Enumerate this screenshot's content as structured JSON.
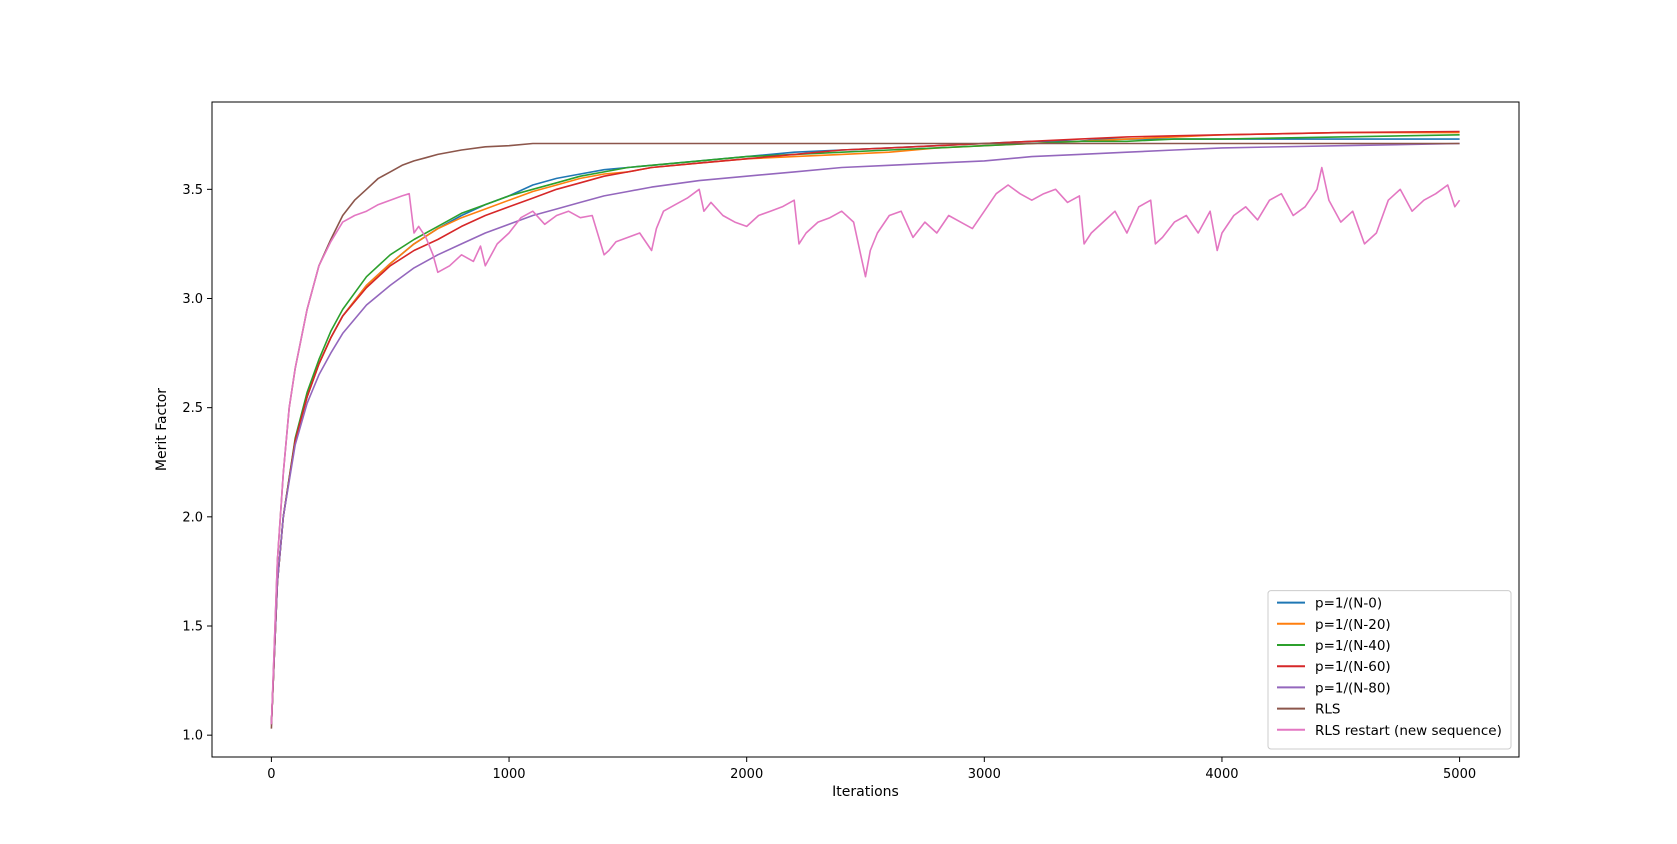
{
  "chart_data": {
    "type": "line",
    "title": "",
    "xlabel": "Iterations",
    "ylabel": "Merit Factor",
    "xlim": [
      -250,
      5250
    ],
    "ylim": [
      0.9,
      3.9
    ],
    "xticks": [
      0,
      1000,
      2000,
      3000,
      4000,
      5000
    ],
    "xtick_labels": [
      "0",
      "1000",
      "2000",
      "3000",
      "4000",
      "5000"
    ],
    "yticks": [
      1.0,
      1.5,
      2.0,
      2.5,
      3.0,
      3.5
    ],
    "ytick_labels": [
      "1.0",
      "1.5",
      "2.0",
      "2.5",
      "3.0",
      "3.5"
    ],
    "grid": false,
    "legend_position": "lower-right",
    "series": [
      {
        "name": "p=1/(N-0)",
        "color": "#1f77b4",
        "x": [
          0,
          25,
          50,
          100,
          150,
          200,
          250,
          300,
          400,
          500,
          600,
          700,
          800,
          900,
          1000,
          1100,
          1200,
          1300,
          1400,
          1500,
          1600,
          1800,
          2000,
          2200,
          2400,
          2600,
          2800,
          3000,
          3200,
          3400,
          3500,
          3700,
          4000,
          4500,
          5000
        ],
        "y": [
          1.05,
          1.7,
          2.0,
          2.35,
          2.55,
          2.7,
          2.82,
          2.92,
          3.06,
          3.16,
          3.25,
          3.32,
          3.38,
          3.43,
          3.47,
          3.52,
          3.55,
          3.57,
          3.59,
          3.6,
          3.61,
          3.63,
          3.65,
          3.67,
          3.68,
          3.69,
          3.7,
          3.71,
          3.72,
          3.72,
          3.73,
          3.73,
          3.73,
          3.73,
          3.73
        ]
      },
      {
        "name": "p=1/(N-20)",
        "color": "#ff7f0e",
        "x": [
          0,
          25,
          50,
          100,
          150,
          200,
          250,
          300,
          400,
          500,
          600,
          700,
          800,
          900,
          1000,
          1100,
          1200,
          1300,
          1400,
          1500,
          1600,
          1800,
          2000,
          2200,
          2400,
          2600,
          2800,
          3000,
          3200,
          3400,
          3600,
          3800,
          4000,
          4500,
          5000
        ],
        "y": [
          1.05,
          1.7,
          2.0,
          2.35,
          2.55,
          2.7,
          2.82,
          2.92,
          3.06,
          3.16,
          3.25,
          3.32,
          3.37,
          3.41,
          3.45,
          3.49,
          3.52,
          3.55,
          3.57,
          3.58,
          3.6,
          3.62,
          3.64,
          3.65,
          3.66,
          3.67,
          3.69,
          3.7,
          3.71,
          3.72,
          3.73,
          3.74,
          3.75,
          3.76,
          3.76
        ]
      },
      {
        "name": "p=1/(N-40)",
        "color": "#2ca02c",
        "x": [
          0,
          25,
          50,
          100,
          150,
          200,
          250,
          300,
          400,
          500,
          600,
          700,
          800,
          900,
          1000,
          1100,
          1200,
          1300,
          1400,
          1500,
          1600,
          1800,
          2000,
          2200,
          2400,
          2600,
          2800,
          3000,
          3200,
          3400,
          3600,
          3800,
          4000,
          4500,
          5000
        ],
        "y": [
          1.05,
          1.7,
          2.0,
          2.36,
          2.57,
          2.72,
          2.85,
          2.95,
          3.1,
          3.2,
          3.27,
          3.33,
          3.39,
          3.43,
          3.47,
          3.5,
          3.53,
          3.56,
          3.58,
          3.6,
          3.61,
          3.63,
          3.65,
          3.66,
          3.67,
          3.68,
          3.69,
          3.7,
          3.71,
          3.72,
          3.72,
          3.73,
          3.73,
          3.74,
          3.75
        ]
      },
      {
        "name": "p=1/(N-60)",
        "color": "#d62728",
        "x": [
          0,
          25,
          50,
          100,
          150,
          200,
          250,
          300,
          400,
          500,
          600,
          700,
          800,
          900,
          1000,
          1100,
          1200,
          1300,
          1400,
          1500,
          1600,
          1800,
          2000,
          2200,
          2400,
          2600,
          2800,
          3000,
          3200,
          3400,
          3600,
          3800,
          4000,
          4500,
          5000
        ],
        "y": [
          1.05,
          1.7,
          2.0,
          2.35,
          2.55,
          2.7,
          2.82,
          2.92,
          3.05,
          3.15,
          3.22,
          3.27,
          3.33,
          3.38,
          3.42,
          3.46,
          3.5,
          3.53,
          3.56,
          3.58,
          3.6,
          3.62,
          3.64,
          3.66,
          3.68,
          3.69,
          3.7,
          3.71,
          3.72,
          3.73,
          3.74,
          3.745,
          3.75,
          3.76,
          3.765
        ]
      },
      {
        "name": "p=1/(N-80)",
        "color": "#9467bd",
        "x": [
          0,
          25,
          50,
          100,
          150,
          200,
          250,
          300,
          400,
          500,
          600,
          700,
          800,
          900,
          1000,
          1100,
          1200,
          1300,
          1400,
          1500,
          1600,
          1800,
          2000,
          2200,
          2400,
          2600,
          2800,
          3000,
          3200,
          3400,
          3600,
          3800,
          4000,
          4500,
          5000
        ],
        "y": [
          1.05,
          1.7,
          2.0,
          2.33,
          2.52,
          2.65,
          2.75,
          2.84,
          2.97,
          3.06,
          3.14,
          3.2,
          3.25,
          3.3,
          3.34,
          3.38,
          3.41,
          3.44,
          3.47,
          3.49,
          3.51,
          3.54,
          3.56,
          3.58,
          3.6,
          3.61,
          3.62,
          3.63,
          3.65,
          3.66,
          3.67,
          3.68,
          3.69,
          3.7,
          3.71
        ]
      },
      {
        "name": "RLS",
        "color": "#8c564b",
        "x": [
          0,
          25,
          50,
          75,
          100,
          150,
          200,
          250,
          300,
          350,
          400,
          450,
          500,
          550,
          600,
          650,
          700,
          800,
          900,
          1000,
          1100,
          1200,
          1500,
          2000,
          2500,
          3000,
          3500,
          4000,
          4500,
          5000
        ],
        "y": [
          1.03,
          1.8,
          2.2,
          2.5,
          2.68,
          2.95,
          3.15,
          3.27,
          3.38,
          3.45,
          3.5,
          3.55,
          3.58,
          3.61,
          3.63,
          3.645,
          3.66,
          3.68,
          3.695,
          3.7,
          3.71,
          3.71,
          3.71,
          3.71,
          3.71,
          3.71,
          3.71,
          3.71,
          3.71,
          3.71
        ]
      },
      {
        "name": "RLS restart (new sequence)",
        "color": "#e377c2",
        "x": [
          0,
          25,
          50,
          75,
          100,
          150,
          200,
          250,
          300,
          350,
          400,
          450,
          500,
          550,
          580,
          600,
          620,
          650,
          680,
          700,
          750,
          800,
          850,
          880,
          900,
          950,
          1000,
          1050,
          1100,
          1150,
          1200,
          1250,
          1300,
          1350,
          1400,
          1420,
          1450,
          1500,
          1550,
          1600,
          1620,
          1650,
          1700,
          1750,
          1800,
          1820,
          1850,
          1900,
          1950,
          2000,
          2050,
          2100,
          2150,
          2200,
          2220,
          2250,
          2300,
          2350,
          2400,
          2450,
          2480,
          2500,
          2520,
          2550,
          2600,
          2650,
          2700,
          2750,
          2800,
          2850,
          2900,
          2950,
          3000,
          3050,
          3100,
          3150,
          3200,
          3250,
          3300,
          3350,
          3400,
          3420,
          3450,
          3500,
          3550,
          3600,
          3650,
          3700,
          3720,
          3750,
          3800,
          3850,
          3900,
          3950,
          3980,
          4000,
          4050,
          4100,
          4150,
          4200,
          4250,
          4300,
          4350,
          4400,
          4420,
          4450,
          4500,
          4550,
          4600,
          4650,
          4700,
          4750,
          4800,
          4850,
          4900,
          4950,
          4980,
          5000
        ],
        "y": [
          1.05,
          1.8,
          2.2,
          2.5,
          2.68,
          2.95,
          3.15,
          3.26,
          3.35,
          3.38,
          3.4,
          3.43,
          3.45,
          3.47,
          3.48,
          3.3,
          3.33,
          3.28,
          3.2,
          3.12,
          3.15,
          3.2,
          3.17,
          3.24,
          3.15,
          3.25,
          3.3,
          3.37,
          3.4,
          3.34,
          3.38,
          3.4,
          3.37,
          3.38,
          3.2,
          3.22,
          3.26,
          3.28,
          3.3,
          3.22,
          3.32,
          3.4,
          3.43,
          3.46,
          3.5,
          3.4,
          3.44,
          3.38,
          3.35,
          3.33,
          3.38,
          3.4,
          3.42,
          3.45,
          3.25,
          3.3,
          3.35,
          3.37,
          3.4,
          3.35,
          3.2,
          3.1,
          3.22,
          3.3,
          3.38,
          3.4,
          3.28,
          3.35,
          3.3,
          3.38,
          3.35,
          3.32,
          3.4,
          3.48,
          3.52,
          3.48,
          3.45,
          3.48,
          3.5,
          3.44,
          3.47,
          3.25,
          3.3,
          3.35,
          3.4,
          3.3,
          3.42,
          3.45,
          3.25,
          3.28,
          3.35,
          3.38,
          3.3,
          3.4,
          3.22,
          3.3,
          3.38,
          3.42,
          3.36,
          3.45,
          3.48,
          3.38,
          3.42,
          3.5,
          3.6,
          3.45,
          3.35,
          3.4,
          3.25,
          3.3,
          3.45,
          3.5,
          3.4,
          3.45,
          3.48,
          3.52,
          3.42,
          3.45
        ]
      }
    ]
  }
}
